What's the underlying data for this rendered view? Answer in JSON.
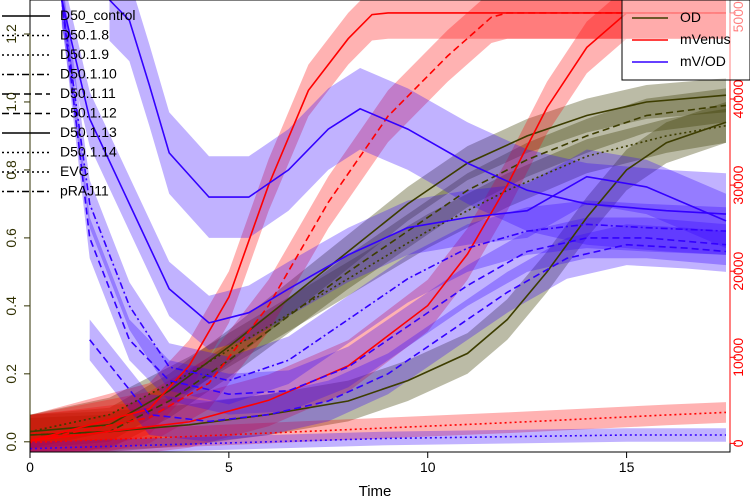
{
  "chart_data": {
    "type": "line",
    "xlabel": "Time",
    "xlim": [
      0,
      17.6
    ],
    "x_ticks": [
      0,
      5,
      10,
      15
    ],
    "ylim_left": [
      -0.03,
      1.3
    ],
    "y_ticks_left": [
      0.0,
      0.2,
      0.4,
      0.6,
      0.8,
      1.0,
      1.2
    ],
    "ylim_right": [
      -1000,
      51500
    ],
    "y_ticks_right": [
      0,
      10000,
      20000,
      30000,
      40000,
      50000
    ],
    "left_axis_color": "#2f2f00",
    "right_axis_color": "#ff0000",
    "axis_legend": {
      "placement": "top-right",
      "entries": [
        {
          "label": "OD",
          "color": "#3d3d00"
        },
        {
          "label": "mVenus",
          "color": "#ff0000"
        },
        {
          "label": "mV/OD",
          "color": "#3300ff"
        }
      ]
    },
    "strain_legend": {
      "placement": "top-left",
      "entries": [
        {
          "label": "D50_control",
          "linetype": "solid"
        },
        {
          "label": "D50.1.8",
          "linetype": "dotted"
        },
        {
          "label": "D50.1.9",
          "linetype": "dotted"
        },
        {
          "label": "D50.1.10",
          "linetype": "dotdash"
        },
        {
          "label": "D50.1.11",
          "linetype": "dashed"
        },
        {
          "label": "D50.1.12",
          "linetype": "dashed"
        },
        {
          "label": "D50.1.13",
          "linetype": "solid"
        },
        {
          "label": "D50.1.14",
          "linetype": "dotted"
        },
        {
          "label": "EVC",
          "linetype": "dotted"
        },
        {
          "label": "pRAJ11",
          "linetype": "dotdash"
        }
      ]
    },
    "series": [
      {
        "group": "OD",
        "color": "#3d3d00",
        "dash": "solid",
        "band": 0.05,
        "x": [
          0,
          2,
          3.5,
          5,
          6.5,
          8,
          9.5,
          11,
          12.5,
          14,
          15.5,
          17.5
        ],
        "y": [
          0.03,
          0.05,
          0.15,
          0.28,
          0.42,
          0.56,
          0.7,
          0.82,
          0.9,
          0.96,
          1.0,
          1.02
        ]
      },
      {
        "group": "OD",
        "color": "#3d3d00",
        "dash": "dashed",
        "band": 0.05,
        "x": [
          0,
          2,
          3.5,
          5,
          6.5,
          8,
          9.5,
          11,
          12.5,
          14,
          15.5,
          17.5
        ],
        "y": [
          0.02,
          0.03,
          0.12,
          0.24,
          0.37,
          0.5,
          0.62,
          0.74,
          0.83,
          0.9,
          0.96,
          0.99
        ]
      },
      {
        "group": "OD",
        "color": "#3d3d00",
        "dash": "solid",
        "band": 0.06,
        "x": [
          0,
          2,
          4,
          6,
          8,
          9.5,
          11,
          12,
          13,
          14,
          15,
          16,
          17.5
        ],
        "y": [
          0.02,
          0.03,
          0.05,
          0.08,
          0.12,
          0.18,
          0.26,
          0.36,
          0.5,
          0.66,
          0.8,
          0.88,
          0.94
        ]
      },
      {
        "group": "OD",
        "color": "#3d3d00",
        "dash": "dotted",
        "band": 0.05,
        "x": [
          0,
          2,
          4,
          6,
          8,
          10,
          12,
          14,
          16,
          17.5
        ],
        "y": [
          0.03,
          0.08,
          0.2,
          0.34,
          0.48,
          0.62,
          0.74,
          0.84,
          0.9,
          0.93
        ]
      },
      {
        "group": "mVenus",
        "color": "#ff0000",
        "dash": "solid",
        "band": 3000,
        "x": [
          0,
          3,
          4,
          5,
          6,
          7,
          8,
          8.6,
          9,
          12,
          15,
          17.5
        ],
        "y": [
          300,
          4000,
          9000,
          17000,
          30000,
          41000,
          47000,
          49800,
          50000,
          50000,
          50000,
          50000
        ]
      },
      {
        "group": "mVenus",
        "color": "#ff0000",
        "dash": "dashed",
        "band": 3000,
        "x": [
          0,
          3,
          4.5,
          6,
          7.5,
          9,
          10.5,
          11.6,
          12,
          15,
          17.5
        ],
        "y": [
          300,
          3000,
          7000,
          16000,
          28000,
          38000,
          45000,
          49500,
          50000,
          50000,
          50000
        ]
      },
      {
        "group": "mVenus",
        "color": "#ff0000",
        "dash": "solid",
        "band": 3000,
        "x": [
          0,
          4,
          6,
          8,
          10,
          11,
          12,
          13,
          14,
          15,
          17.5
        ],
        "y": [
          300,
          2500,
          5000,
          9000,
          16000,
          22000,
          30000,
          39000,
          46000,
          50000,
          50000
        ]
      },
      {
        "group": "mVenus",
        "color": "#ff0000",
        "dash": "dotted",
        "band": 1200,
        "x": [
          0,
          4,
          8,
          12,
          16,
          17.5
        ],
        "y": [
          100,
          800,
          1600,
          2400,
          3300,
          3600
        ]
      },
      {
        "group": "mV/OD",
        "color": "#3300ff",
        "dash": "solid",
        "band": 0.12,
        "x": [
          2.0,
          2.5,
          3.0,
          3.5,
          4.5,
          5.5,
          6.5,
          7.5,
          8.3,
          9.5,
          11,
          12.5,
          14,
          16,
          17.5
        ],
        "y": [
          1.3,
          1.24,
          1.05,
          0.85,
          0.72,
          0.72,
          0.8,
          0.92,
          0.98,
          0.92,
          0.82,
          0.74,
          0.7,
          0.68,
          0.67
        ]
      },
      {
        "group": "mV/OD",
        "color": "#3300ff",
        "dash": "solid",
        "band": 0.08,
        "x": [
          0.8,
          1.5,
          2.5,
          3.5,
          4.5,
          5.5,
          6.5,
          8,
          9.5,
          11,
          12.5,
          14,
          15.5,
          17.5
        ],
        "y": [
          1.3,
          0.95,
          0.7,
          0.45,
          0.35,
          0.38,
          0.45,
          0.55,
          0.63,
          0.66,
          0.68,
          0.78,
          0.75,
          0.65
        ]
      },
      {
        "group": "mV/OD",
        "color": "#3300ff",
        "dash": "dashed",
        "band": 0.06,
        "x": [
          0.8,
          1.5,
          2.5,
          3.5,
          5,
          6.5,
          8,
          9.5,
          11,
          12.5,
          14,
          15.5,
          17.5
        ],
        "y": [
          1.3,
          0.6,
          0.3,
          0.18,
          0.14,
          0.15,
          0.22,
          0.34,
          0.46,
          0.56,
          0.6,
          0.6,
          0.58
        ]
      },
      {
        "group": "mV/OD",
        "color": "#3300ff",
        "dash": "dashed",
        "band": 0.06,
        "x": [
          1.5,
          3,
          4.5,
          6,
          7.5,
          9,
          10.5,
          12,
          13.5,
          15,
          16.5,
          17.5
        ],
        "y": [
          0.3,
          0.08,
          0.06,
          0.08,
          0.12,
          0.2,
          0.32,
          0.44,
          0.54,
          0.58,
          0.57,
          0.56
        ]
      },
      {
        "group": "mV/OD",
        "color": "#3300ff",
        "dash": "dotdash",
        "band": 0.07,
        "x": [
          0.8,
          1.5,
          2.5,
          3.5,
          5,
          6.5,
          8,
          9.5,
          11,
          12.5,
          14,
          15.5,
          17.5
        ],
        "y": [
          1.3,
          0.7,
          0.4,
          0.22,
          0.18,
          0.24,
          0.36,
          0.48,
          0.57,
          0.62,
          0.64,
          0.63,
          0.62
        ]
      },
      {
        "group": "mV/OD",
        "color": "#3300ff",
        "dash": "dotted",
        "band": 0.02,
        "x": [
          0,
          3,
          6,
          9,
          12,
          15,
          17.5
        ],
        "y": [
          -0.02,
          -0.01,
          0.0,
          0.01,
          0.015,
          0.02,
          0.02
        ]
      }
    ]
  }
}
